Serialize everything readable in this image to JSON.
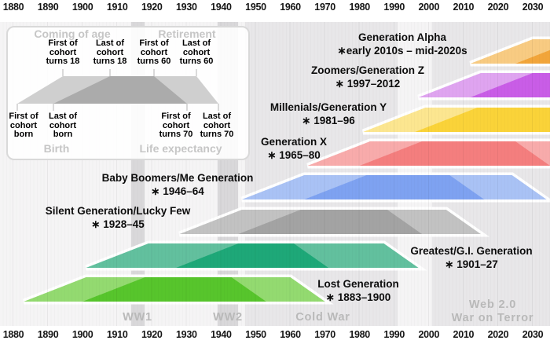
{
  "chart_data": {
    "type": "timeline",
    "x_axis": {
      "min": 1880,
      "max": 2030,
      "tick_interval": 10,
      "unit": "year",
      "ticks": [
        1880,
        1890,
        1900,
        1910,
        1920,
        1930,
        1940,
        1950,
        1960,
        1970,
        1980,
        1990,
        2000,
        2010,
        2020,
        2030
      ]
    },
    "shape_encoding": {
      "bottom_left_light": "First of cohort born",
      "top_left_light": "First of cohort turns 18",
      "bottom_left_dark": "Last of cohort born",
      "top_left_dark": "Last of cohort turns 18",
      "top_right_dark": "First of cohort turns 60",
      "bottom_right_dark": "First of cohort turns 70",
      "top_right_light": "Last of cohort turns 60",
      "bottom_right_light": "Last of cohort turns 70"
    },
    "generations": [
      {
        "name": "Generation Alpha",
        "birth_label": "∗early 2010s – mid-2020s",
        "birth_start": 2012,
        "birth_end": 2025,
        "color": "#f2a53a",
        "color_light": "#f8cb82"
      },
      {
        "name": "Zoomers/Generation Z",
        "birth_label": "∗ 1997–2012",
        "birth_start": 1997,
        "birth_end": 2012,
        "color": "#c95de7",
        "color_light": "#dfa4f0"
      },
      {
        "name": "Millenials/Generation Y",
        "birth_label": "∗ 1981–96",
        "birth_start": 1981,
        "birth_end": 1996,
        "color": "#fad339",
        "color_light": "#fce690"
      },
      {
        "name": "Generation X",
        "birth_label": "∗ 1965–80",
        "birth_start": 1965,
        "birth_end": 1980,
        "color": "#f47e7e",
        "color_light": "#f8abab"
      },
      {
        "name": "Baby Boomers/Me Generation",
        "birth_label": "∗ 1946–64",
        "birth_start": 1946,
        "birth_end": 1964,
        "color": "#7ea2f1",
        "color_light": "#a9c2f5"
      },
      {
        "name": "Silent Generation/Lucky Few",
        "birth_label": "∗ 1928–45",
        "birth_start": 1928,
        "birth_end": 1945,
        "color": "#a3a3a3",
        "color_light": "#c2c2c2"
      },
      {
        "name": "Greatest/G.I. Generation",
        "birth_label": "∗ 1901–27",
        "birth_start": 1901,
        "birth_end": 1927,
        "color": "#1ea878",
        "color_light": "#62c09e"
      },
      {
        "name": "Lost Generation",
        "birth_label": "∗ 1883–1900",
        "birth_start": 1883,
        "birth_end": 1900,
        "color": "#57c52c",
        "color_light": "#93da70"
      }
    ],
    "eras": [
      {
        "name": "WW1",
        "start": 1914,
        "end": 1918,
        "color": "#d9d8da"
      },
      {
        "name": "WW2",
        "start": 1939,
        "end": 1945,
        "color": "#d9d8da"
      },
      {
        "name": "Cold War",
        "start": 1947,
        "end": 1991,
        "color": "#e8e7e9"
      },
      {
        "name": "War on Terror",
        "name_secondary": "Web 2.0",
        "start": 2001,
        "end": 2036,
        "color": "#e8e7e9"
      }
    ]
  },
  "legend": {
    "coming_of_age": "Coming of age",
    "retirement": "Retirement",
    "birth": "Birth",
    "life_expectancy": "Life expectancy",
    "shape_color": "#ababab",
    "shape_color_light": "#cfcfcf",
    "top_markers": [
      [
        "First of",
        "cohort",
        "turns 18"
      ],
      [
        "Last of",
        "cohort",
        "turns 18"
      ],
      [
        "First of",
        "cohort",
        "turns 60"
      ],
      [
        "Last of",
        "cohort",
        "turns 60"
      ]
    ],
    "bottom_markers": [
      [
        "First of",
        "cohort",
        "born"
      ],
      [
        "Last of",
        "cohort",
        "born"
      ],
      [
        "First of",
        "cohort",
        "turns 70"
      ],
      [
        "Last of",
        "cohort",
        "turns 70"
      ]
    ]
  }
}
